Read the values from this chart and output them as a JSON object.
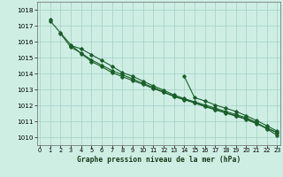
{
  "background_color": "#ceeee4",
  "grid_color": "#aad4c8",
  "line_color": "#1a5e2a",
  "xlabel": "Graphe pression niveau de la mer (hPa)",
  "ylim": [
    1009.5,
    1018.5
  ],
  "xlim": [
    -0.3,
    23.3
  ],
  "yticks": [
    1010,
    1011,
    1012,
    1013,
    1014,
    1015,
    1016,
    1017,
    1018
  ],
  "xticks": [
    0,
    1,
    2,
    3,
    4,
    5,
    6,
    7,
    8,
    9,
    10,
    11,
    12,
    13,
    14,
    15,
    16,
    17,
    18,
    19,
    20,
    21,
    22,
    23
  ],
  "series": [
    [
      null,
      1017.4,
      null,
      null,
      null,
      null,
      null,
      null,
      null,
      null,
      null,
      null,
      null,
      null,
      null,
      null,
      null,
      null,
      null,
      null,
      null,
      null,
      null,
      null
    ],
    [
      null,
      1017.3,
      1016.55,
      1015.8,
      1015.25,
      1014.75,
      1014.42,
      1014.05,
      1013.8,
      1013.55,
      1013.32,
      1013.05,
      1012.82,
      1012.55,
      1012.35,
      1012.15,
      1011.92,
      1011.72,
      1011.52,
      1011.32,
      1011.12,
      1010.85,
      1010.55,
      1010.3
    ],
    [
      null,
      null,
      1016.5,
      1015.65,
      1015.28,
      1014.85,
      1014.52,
      1014.18,
      1013.92,
      1013.65,
      1013.38,
      1013.12,
      1012.85,
      1012.58,
      1012.38,
      1012.18,
      1011.95,
      1011.75,
      1011.55,
      1011.35,
      1011.15,
      1010.88,
      1010.58,
      1010.28
    ],
    [
      null,
      null,
      null,
      1015.75,
      1015.55,
      1015.18,
      1014.82,
      1014.45,
      1014.05,
      1013.82,
      1013.52,
      1013.22,
      1012.95,
      1012.65,
      1012.42,
      1012.22,
      1012.02,
      1011.82,
      1011.62,
      1011.42,
      1011.22,
      1010.92,
      1010.52,
      1010.12
    ],
    [
      null,
      null,
      null,
      null,
      null,
      null,
      null,
      null,
      null,
      null,
      null,
      null,
      null,
      null,
      1013.82,
      1012.48,
      1012.28,
      1012.02,
      1011.82,
      1011.62,
      1011.35,
      1011.05,
      1010.72,
      1010.38
    ]
  ]
}
